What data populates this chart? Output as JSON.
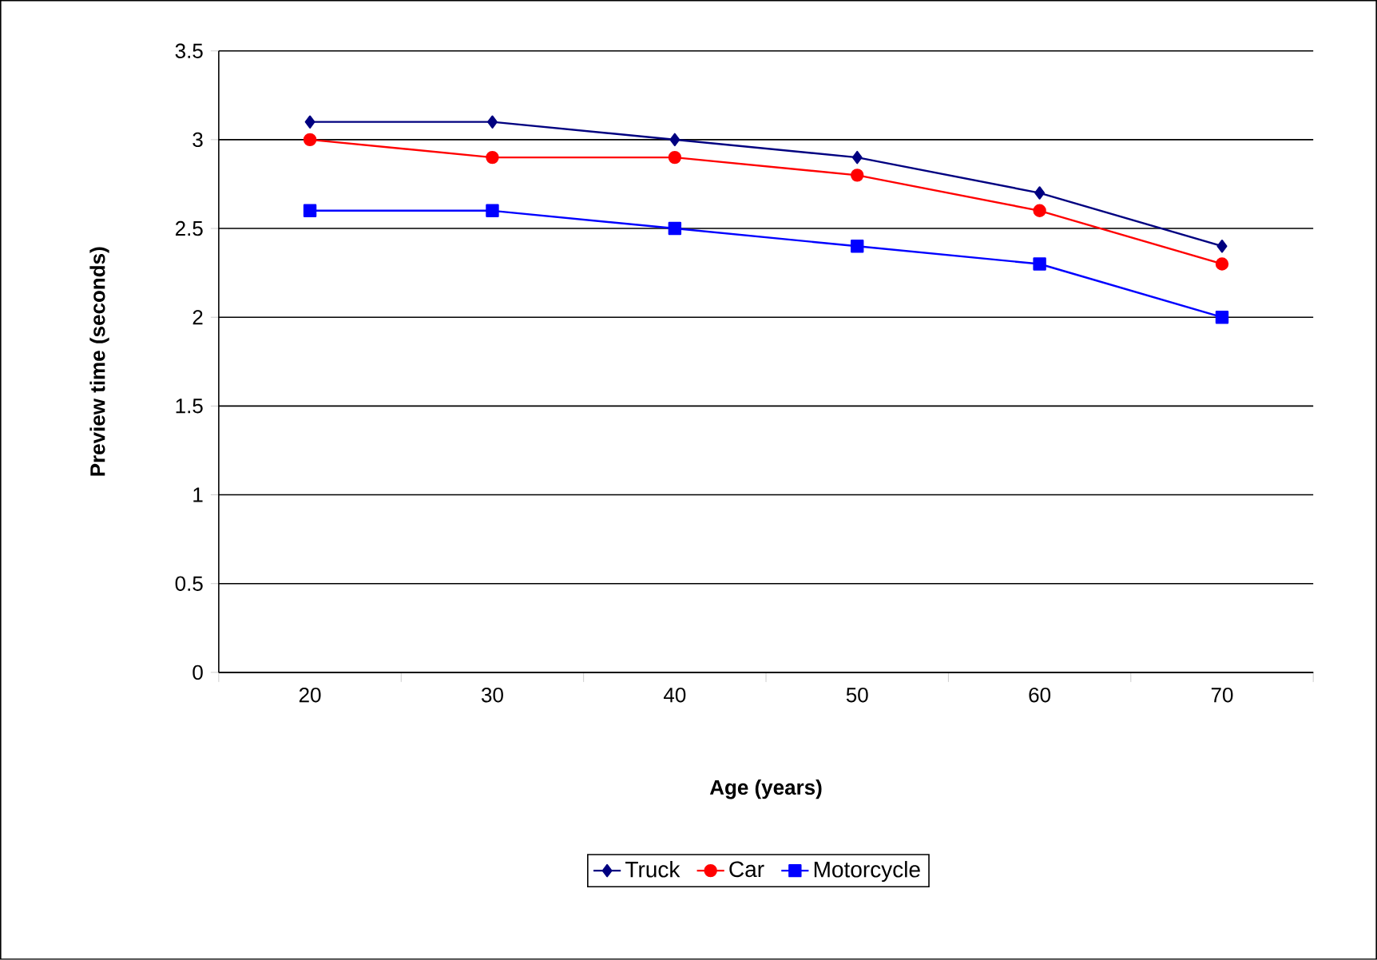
{
  "chart_data": {
    "type": "line",
    "xlabel": "Age (years)",
    "ylabel": "Preview time (seconds)",
    "categories": [
      "20",
      "30",
      "40",
      "50",
      "60",
      "70"
    ],
    "series": [
      {
        "name": "Truck",
        "color": "#000080",
        "marker": "diamond",
        "values": [
          3.1,
          3.1,
          3.0,
          2.9,
          2.7,
          2.4
        ]
      },
      {
        "name": "Car",
        "color": "#ff0000",
        "marker": "circle",
        "values": [
          3.0,
          2.9,
          2.9,
          2.8,
          2.6,
          2.3
        ]
      },
      {
        "name": "Motorcycle",
        "color": "#0000ff",
        "marker": "square",
        "values": [
          2.6,
          2.6,
          2.5,
          2.4,
          2.3,
          2.0
        ]
      }
    ],
    "ylim": [
      0,
      3.5
    ],
    "yticks": [
      0,
      0.5,
      1,
      1.5,
      2,
      2.5,
      3,
      3.5
    ],
    "grid": "y",
    "legend": "bottom",
    "line_style": "solid"
  }
}
